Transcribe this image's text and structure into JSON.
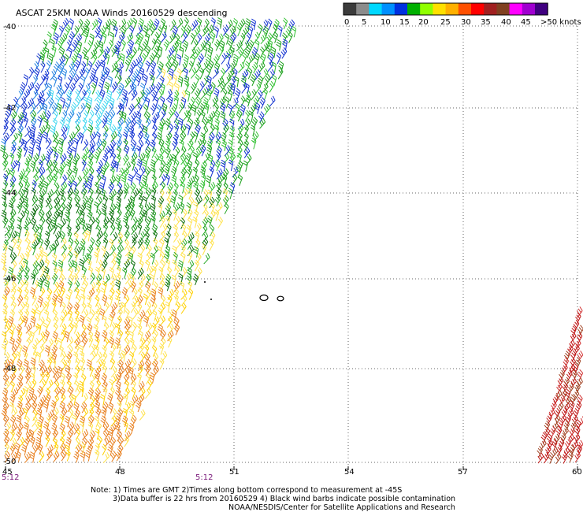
{
  "title": "ASCAT 25KM NOAA Winds 20160529 descending",
  "colorbar": {
    "colors": [
      "#3c3c3c",
      "#8c8c8c",
      "#00d8ff",
      "#0090ff",
      "#0030e0",
      "#00b000",
      "#90ff00",
      "#ffe000",
      "#ffb000",
      "#ff5000",
      "#ff0000",
      "#a02020",
      "#804020",
      "#ff00ff",
      "#a000d0",
      "#400080"
    ],
    "labels": [
      "0",
      "5",
      "10",
      "15",
      "20",
      "25",
      "30",
      "35",
      "40",
      "45",
      ">50 knots"
    ]
  },
  "axes": {
    "x_ticks": [
      "45",
      "48",
      "51",
      "54",
      "57",
      "60"
    ],
    "y_ticks": [
      "-40",
      "-42",
      "-44",
      "-46",
      "-48",
      "-50"
    ]
  },
  "times": [
    "5:12",
    "5:12"
  ],
  "notes": [
    "Note: 1) Times are GMT 2)Times along bottom correspond to measurement at -45S",
    "3)Data buffer is 22 hrs from 20160529 4) Black wind barbs indicate possible contamination",
    "NOAA/NESDIS/Center for Satellite Applications and Research"
  ]
}
